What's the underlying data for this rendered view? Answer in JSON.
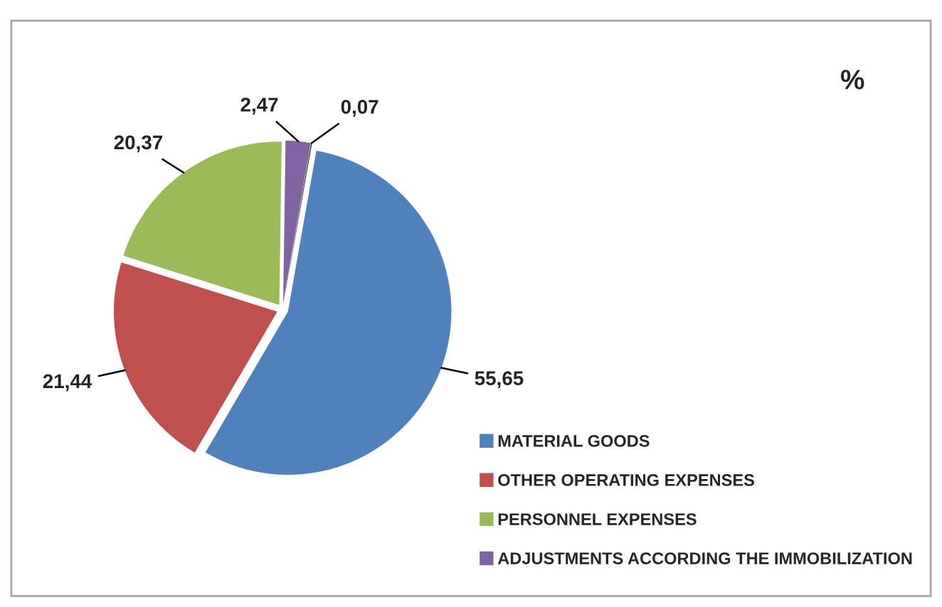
{
  "chart_data": {
    "type": "pie",
    "title": "%",
    "categories": [
      "MATERIAL GOODS",
      "OTHER OPERATING EXPENSES",
      "PERSONNEL EXPENSES",
      "ADJUSTMENTS ACCORDING THE IMMOBILIZATION",
      null
    ],
    "values": [
      55.65,
      21.44,
      20.37,
      2.47,
      0.07
    ],
    "colors": [
      "#4f81bd",
      "#c0504d",
      "#9bbb59",
      "#8064a2",
      "#000000"
    ],
    "value_labels": [
      "55,65",
      "21,44",
      "20,37",
      "2,47",
      "0,07"
    ],
    "legend": "bottom right"
  }
}
